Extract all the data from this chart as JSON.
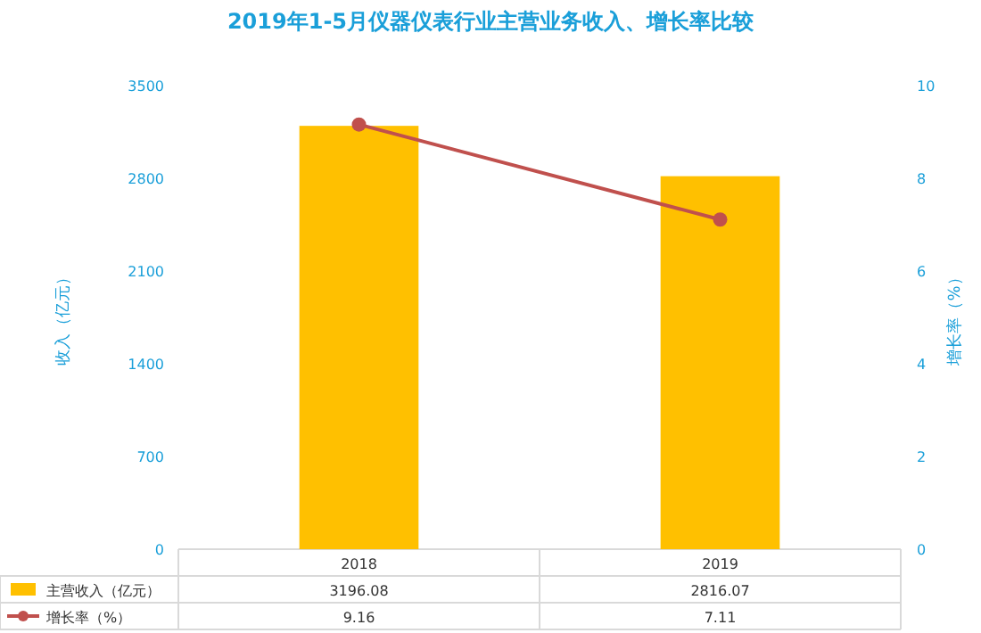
{
  "chart_data": {
    "type": "bar",
    "title": "2019年1-5月仪器仪表行业主营业务收入、增长率比较",
    "ylabel": "收入（亿元）",
    "y2label": "增长率（%）",
    "categories": [
      "2018",
      "2019"
    ],
    "series": [
      {
        "name": "主营收入（亿元）",
        "color": "#ffc000",
        "values": [
          3196.08,
          2816.07
        ]
      },
      {
        "name": "增长率（%）",
        "type": "line",
        "axis": "y2",
        "color": "#c0504d",
        "marker": "circle",
        "values": [
          9.16,
          7.11
        ]
      }
    ],
    "ylim": [
      0,
      3500
    ],
    "yticks": [
      0,
      700,
      1400,
      2100,
      2800,
      3500
    ],
    "y2lim": [
      0,
      10
    ],
    "y2ticks": [
      0,
      2,
      4,
      6,
      8,
      10
    ],
    "data_labels": true,
    "legend": "bottom",
    "grid": false
  }
}
